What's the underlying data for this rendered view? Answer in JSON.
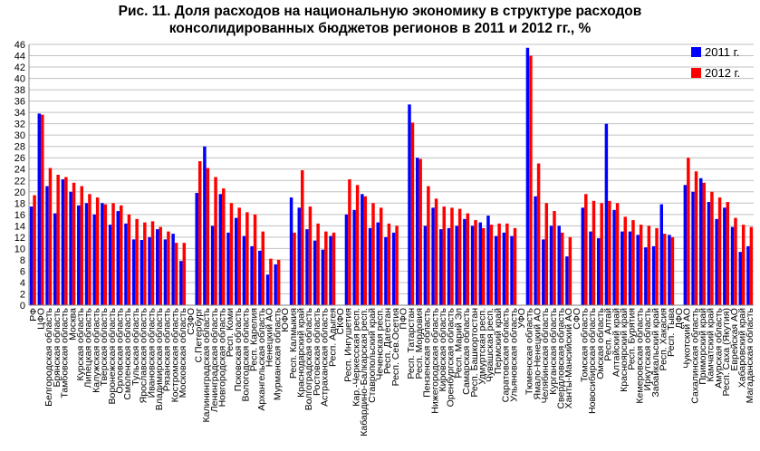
{
  "colors": {
    "series_2011": "#0000ff",
    "series_2012": "#ff0000",
    "grid": "#c0c0c0",
    "axis": "#808080"
  },
  "chart_data": {
    "type": "bar",
    "title_line1": "Рис. 11. Доля расходов на национальную экономику в структуре расходов",
    "title_line2": "консолидированных бюджетов регионов в 2011 и 2012 гг., %",
    "xlabel": "",
    "ylabel": "",
    "ylim": [
      0,
      46
    ],
    "yticks": [
      0,
      2,
      4,
      6,
      8,
      10,
      12,
      14,
      16,
      18,
      20,
      22,
      24,
      26,
      28,
      30,
      32,
      34,
      36,
      38,
      40,
      42,
      44,
      46
    ],
    "grid": true,
    "legend_position": "top-right",
    "categories": [
      "РФ",
      "ЦФО",
      "Белгородская область",
      "Брянская область",
      "Тамбовская область",
      "Москва",
      "Курская область",
      "Липецкая область",
      "Калужская область",
      "Тверская область",
      "Воронежская область",
      "Орловская область",
      "Смоленская область",
      "Тульская область",
      "Ярославская область",
      "Ивановская область",
      "Владимирская область",
      "Рязанская область",
      "Костромская область",
      "Московская область",
      "СЗФО",
      "С.Петербург",
      "Калининградская область",
      "Ленинградская область",
      "Новгородская область",
      "Респ. Коми",
      "Псковская область",
      "Вологодская область",
      "Респ. Карелия",
      "Архангельская область",
      "Ненецкий АО",
      "Мурманская область",
      "ЮФО",
      "Респ. Калмыкия",
      "Краснодарский край",
      "Волгоградская область",
      "Ростовская область",
      "Астраханская область",
      "Респ. Адыгея",
      "СКФО",
      "Респ. Ингушетия",
      "Кар.-Черкесская респ.",
      "Кабардино-Балкарская респ.",
      "Ставропольский край",
      "Чеченская респ.",
      "Респ. Дагестан",
      "Респ. Сев.Осетия",
      "ПФО",
      "Респ. Татарстан",
      "Респ. Мордовия",
      "Пензенская область",
      "Нижегородская область",
      "Кировская область",
      "Оренбургская область",
      "Респ. Марий Эл",
      "Самарская область",
      "Респ. Башкортостан",
      "Удмуртская респ.",
      "Чувашская респ.",
      "Пермский край",
      "Саратовская область",
      "Ульяновская область",
      "УФО",
      "Тюменская область",
      "Ямало-Ненецкий АО",
      "Челябинская область",
      "Курганская область",
      "Свердловская область",
      "Ханты-Мансийский АО",
      "СФО",
      "Томская область",
      "Новосибирская область",
      "Омская область",
      "Респ. Алтай",
      "Алтайский край",
      "Красноярский край",
      "Респ. Бурятия",
      "Кемеровская область",
      "Иркутская область",
      "Забайкальский край",
      "Респ. Хакасия",
      "Респ. Тыва",
      "ДФО",
      "Чукотский АО",
      "Сахалинская область",
      "Приморский край",
      "Камчатский край",
      "Амурская область",
      "Респ. Саха (Якутия)",
      "Еврейская АО",
      "Хабаровский край",
      "Магаданская область"
    ],
    "series": [
      {
        "name": "2011 г.",
        "values": [
          17.4,
          33.8,
          21.0,
          16.2,
          22.2,
          20.0,
          17.6,
          18.0,
          16.0,
          18.0,
          14.2,
          16.6,
          14.4,
          11.6,
          11.5,
          12.0,
          13.4,
          11.6,
          12.6,
          7.8,
          null,
          19.8,
          28.0,
          14.0,
          19.6,
          12.8,
          15.4,
          12.2,
          10.4,
          9.6,
          5.4,
          7.2,
          null,
          19.0,
          17.2,
          13.4,
          11.4,
          9.8,
          12.2,
          null,
          16.0,
          16.8,
          19.6,
          13.6,
          14.6,
          12.0,
          12.8,
          null,
          35.4,
          26.0,
          14.0,
          17.2,
          13.4,
          13.6,
          14.0,
          15.2,
          14.0,
          14.6,
          15.8,
          12.2,
          12.8,
          12.2,
          null,
          45.4,
          19.2,
          11.6,
          14.0,
          14.0,
          8.6,
          null,
          17.2,
          13.0,
          11.8,
          32.0,
          16.8,
          13.0,
          13.0,
          12.4,
          10.2,
          10.4,
          17.8,
          12.4,
          null,
          21.2,
          20.0,
          22.4,
          18.2,
          15.2,
          17.2,
          13.8,
          9.4,
          10.4
        ]
      },
      {
        "name": "2012 г.",
        "values": [
          19.4,
          33.6,
          24.2,
          23.0,
          22.6,
          21.6,
          21.0,
          19.6,
          19.0,
          17.8,
          18.0,
          17.6,
          16.0,
          15.2,
          14.6,
          14.8,
          13.8,
          13.0,
          11.0,
          11.0,
          null,
          25.4,
          24.2,
          22.6,
          20.6,
          18.0,
          17.2,
          16.4,
          16.0,
          13.0,
          8.2,
          8.0,
          null,
          12.8,
          23.8,
          17.4,
          14.4,
          13.0,
          12.8,
          null,
          22.2,
          21.2,
          19.2,
          18.0,
          17.2,
          14.4,
          14.0,
          null,
          32.2,
          25.8,
          21.0,
          18.8,
          17.4,
          17.2,
          17.0,
          16.2,
          15.0,
          13.6,
          14.2,
          14.4,
          14.4,
          13.6,
          null,
          44.0,
          25.0,
          18.0,
          16.6,
          12.8,
          12.0,
          null,
          19.6,
          18.4,
          18.0,
          18.4,
          18.0,
          15.6,
          15.0,
          14.2,
          14.0,
          13.6,
          12.6,
          12.0,
          null,
          26.0,
          23.6,
          21.6,
          20.0,
          19.0,
          18.2,
          15.4,
          14.2,
          13.8
        ]
      }
    ]
  }
}
